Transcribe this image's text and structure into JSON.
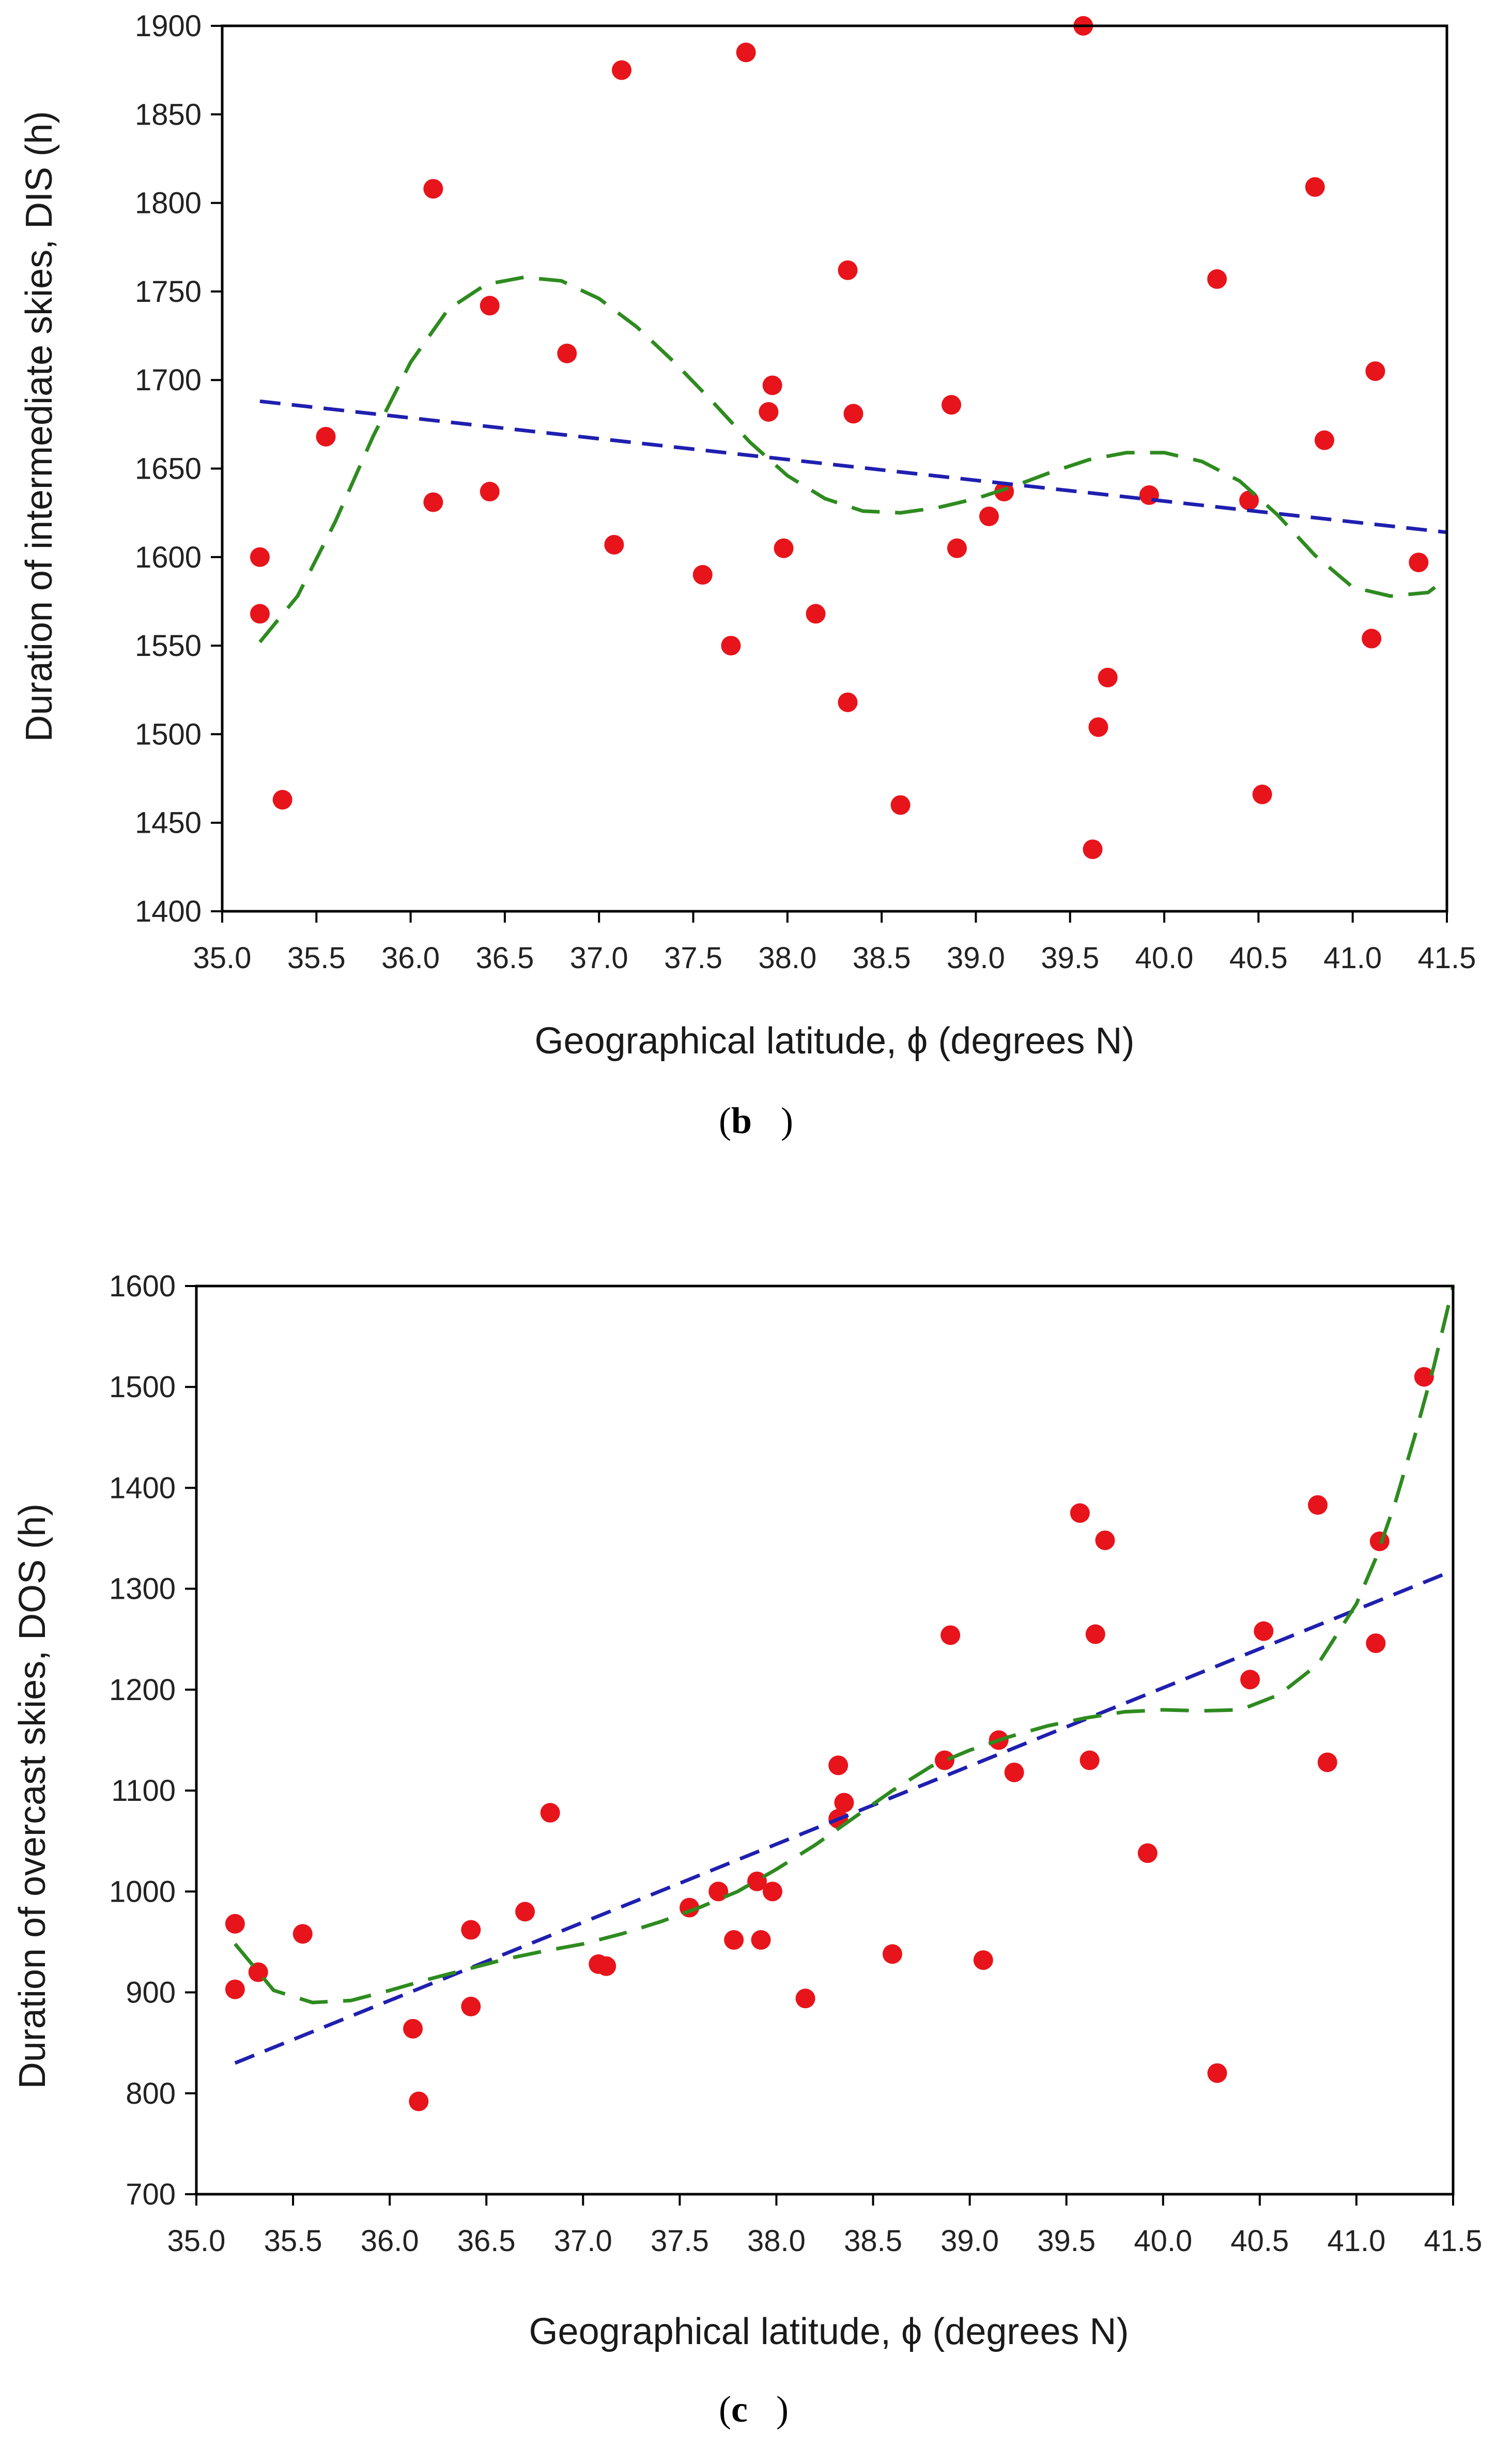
{
  "colors": {
    "points": "#e8141b",
    "linear_fit": "#1f1fb0",
    "poly_fit": "#2e8b1f",
    "axis": "#000000"
  },
  "chart_data": [
    {
      "panel": "b",
      "panel_label": "b",
      "type": "scatter",
      "xlabel": "Geographical latitude, ϕ (degrees N)",
      "ylabel": "Duration of intermediate skies, DIS (h)",
      "xlim": [
        35.0,
        41.5
      ],
      "ylim": [
        1400,
        1900
      ],
      "xticks": [
        "35.0",
        "35.5",
        "36.0",
        "36.5",
        "37.0",
        "37.5",
        "38.0",
        "38.5",
        "39.0",
        "39.5",
        "40.0",
        "40.5",
        "41.0",
        "41.5"
      ],
      "yticks": [
        "1400",
        "1450",
        "1500",
        "1550",
        "1600",
        "1650",
        "1700",
        "1750",
        "1800",
        "1850",
        "1900"
      ],
      "points": [
        [
          35.2,
          1600
        ],
        [
          35.2,
          1568
        ],
        [
          35.32,
          1463
        ],
        [
          35.55,
          1668
        ],
        [
          36.12,
          1808
        ],
        [
          36.12,
          1631
        ],
        [
          36.42,
          1742
        ],
        [
          36.42,
          1637
        ],
        [
          36.83,
          1715
        ],
        [
          37.08,
          1607
        ],
        [
          37.12,
          1875
        ],
        [
          37.55,
          1590
        ],
        [
          37.7,
          1550
        ],
        [
          37.78,
          1885
        ],
        [
          37.9,
          1682
        ],
        [
          37.92,
          1697
        ],
        [
          37.98,
          1605
        ],
        [
          38.15,
          1568
        ],
        [
          38.32,
          1762
        ],
        [
          38.32,
          1518
        ],
        [
          38.35,
          1681
        ],
        [
          38.6,
          1460
        ],
        [
          38.87,
          1686
        ],
        [
          38.9,
          1605
        ],
        [
          39.07,
          1623
        ],
        [
          39.15,
          1637
        ],
        [
          39.57,
          1900
        ],
        [
          39.62,
          1435
        ],
        [
          39.65,
          1504
        ],
        [
          39.7,
          1532
        ],
        [
          39.92,
          1635
        ],
        [
          40.28,
          1757
        ],
        [
          40.45,
          1632
        ],
        [
          40.52,
          1466
        ],
        [
          40.8,
          1809
        ],
        [
          40.85,
          1666
        ],
        [
          41.1,
          1554
        ],
        [
          41.12,
          1705
        ],
        [
          41.35,
          1597
        ]
      ],
      "linear_fit": {
        "x": [
          35.2,
          41.5
        ],
        "y": [
          1688,
          1614
        ]
      },
      "poly_fit": {
        "x": [
          35.2,
          35.4,
          35.6,
          35.8,
          36.0,
          36.2,
          36.4,
          36.6,
          36.8,
          37.0,
          37.2,
          37.4,
          37.6,
          37.8,
          38.0,
          38.2,
          38.4,
          38.6,
          38.8,
          39.0,
          39.2,
          39.4,
          39.6,
          39.8,
          40.0,
          40.2,
          40.4,
          40.6,
          40.8,
          41.0,
          41.2,
          41.4,
          41.5
        ],
        "y": [
          1552,
          1578,
          1620,
          1668,
          1710,
          1740,
          1754,
          1758,
          1756,
          1746,
          1730,
          1710,
          1688,
          1665,
          1646,
          1633,
          1626,
          1625,
          1628,
          1633,
          1640,
          1648,
          1655,
          1659,
          1659,
          1654,
          1643,
          1624,
          1601,
          1583,
          1578,
          1580,
          1588
        ]
      }
    },
    {
      "panel": "c",
      "panel_label": "c",
      "type": "scatter",
      "xlabel": "Geographical latitude, ϕ (degrees N)",
      "ylabel": "Duration of overcast skies, DOS (h)",
      "xlim": [
        35.0,
        41.5
      ],
      "ylim": [
        700,
        1600
      ],
      "xticks": [
        "35.0",
        "35.5",
        "36.0",
        "36.5",
        "37.0",
        "37.5",
        "38.0",
        "38.5",
        "39.0",
        "39.5",
        "40.0",
        "40.5",
        "41.0",
        "41.5"
      ],
      "yticks": [
        "700",
        "800",
        "900",
        "1000",
        "1100",
        "1200",
        "1300",
        "1400",
        "1500",
        "1600"
      ],
      "points": [
        [
          35.2,
          968
        ],
        [
          35.2,
          903
        ],
        [
          35.32,
          920
        ],
        [
          35.55,
          958
        ],
        [
          36.12,
          864
        ],
        [
          36.15,
          792
        ],
        [
          36.42,
          886
        ],
        [
          36.42,
          962
        ],
        [
          36.7,
          980
        ],
        [
          36.83,
          1078
        ],
        [
          37.08,
          928
        ],
        [
          37.12,
          926
        ],
        [
          37.55,
          984
        ],
        [
          37.7,
          1000
        ],
        [
          37.78,
          952
        ],
        [
          37.9,
          1010
        ],
        [
          37.92,
          952
        ],
        [
          37.98,
          1000
        ],
        [
          38.15,
          894
        ],
        [
          38.32,
          1072
        ],
        [
          38.32,
          1125
        ],
        [
          38.35,
          1088
        ],
        [
          38.6,
          938
        ],
        [
          38.87,
          1130
        ],
        [
          38.9,
          1254
        ],
        [
          39.07,
          932
        ],
        [
          39.15,
          1150
        ],
        [
          39.23,
          1118
        ],
        [
          39.57,
          1375
        ],
        [
          39.62,
          1130
        ],
        [
          39.65,
          1255
        ],
        [
          39.7,
          1348
        ],
        [
          39.92,
          1038
        ],
        [
          40.28,
          820
        ],
        [
          40.45,
          1210
        ],
        [
          40.52,
          1258
        ],
        [
          40.8,
          1383
        ],
        [
          40.85,
          1128
        ],
        [
          41.1,
          1246
        ],
        [
          41.12,
          1347
        ],
        [
          41.35,
          1510
        ]
      ],
      "linear_fit": {
        "x": [
          35.2,
          41.5
        ],
        "y": [
          830,
          1318
        ]
      },
      "poly_fit": {
        "x": [
          35.2,
          35.4,
          35.6,
          35.8,
          36.0,
          36.2,
          36.4,
          36.6,
          36.8,
          37.0,
          37.2,
          37.4,
          37.6,
          37.8,
          38.0,
          38.2,
          38.4,
          38.6,
          38.8,
          39.0,
          39.2,
          39.4,
          39.6,
          39.8,
          40.0,
          40.2,
          40.4,
          40.6,
          40.8,
          41.0,
          41.1,
          41.2,
          41.3,
          41.4,
          41.5
        ],
        "y": [
          948,
          902,
          890,
          892,
          902,
          913,
          923,
          933,
          941,
          948,
          958,
          970,
          984,
          1000,
          1022,
          1046,
          1073,
          1100,
          1124,
          1140,
          1153,
          1164,
          1172,
          1178,
          1180,
          1179,
          1180,
          1195,
          1225,
          1285,
          1330,
          1385,
          1450,
          1520,
          1600
        ]
      }
    }
  ]
}
